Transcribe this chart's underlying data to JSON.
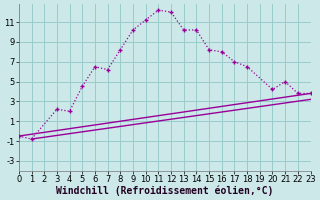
{
  "bg_color": "#cce8e8",
  "grid_color": "#99cccc",
  "line_color": "#990099",
  "xlabel": "Windchill (Refroidissement éolien,°C)",
  "xlabel_fontsize": 7.0,
  "tick_fontsize": 6.0,
  "xlim": [
    0,
    23
  ],
  "ylim": [
    -4.0,
    12.8
  ],
  "yticks": [
    -3,
    -1,
    1,
    3,
    5,
    7,
    9,
    11
  ],
  "xticks": [
    0,
    1,
    2,
    3,
    4,
    5,
    6,
    7,
    8,
    9,
    10,
    11,
    12,
    13,
    14,
    15,
    16,
    17,
    18,
    19,
    20,
    21,
    22,
    23
  ],
  "curve1_x": [
    0,
    1,
    3,
    4,
    5,
    6,
    7,
    8,
    9,
    10,
    11,
    12,
    13,
    14,
    15,
    16,
    17,
    18,
    20,
    21,
    22,
    23
  ],
  "curve1_y": [
    -0.5,
    -0.8,
    2.2,
    2.0,
    4.5,
    6.5,
    6.2,
    8.2,
    10.2,
    11.2,
    12.2,
    12.0,
    10.2,
    10.2,
    8.2,
    8.0,
    7.0,
    6.5,
    4.2,
    5.0,
    3.8,
    3.8
  ],
  "line1_x": [
    0,
    23
  ],
  "line1_y": [
    -0.5,
    3.8
  ],
  "line2_x": [
    1,
    23
  ],
  "line2_y": [
    -0.8,
    3.2
  ]
}
